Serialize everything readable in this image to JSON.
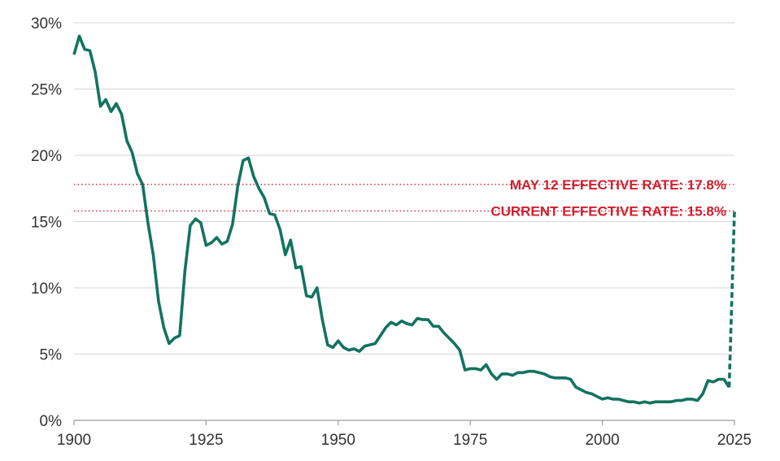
{
  "chart_data": {
    "type": "line",
    "title": "",
    "xlabel": "",
    "ylabel": "",
    "xlim": [
      1900,
      2025
    ],
    "ylim": [
      0,
      30
    ],
    "y_unit": "%",
    "grid": "horizontal",
    "x_ticks": [
      {
        "value": 1900,
        "label": "1900"
      },
      {
        "value": 1925,
        "label": "1925"
      },
      {
        "value": 1950,
        "label": "1950"
      },
      {
        "value": 1975,
        "label": "1975"
      },
      {
        "value": 2000,
        "label": "2000"
      },
      {
        "value": 2025,
        "label": "2025"
      }
    ],
    "y_ticks": [
      {
        "value": 0,
        "label": "0%"
      },
      {
        "value": 5,
        "label": "5%"
      },
      {
        "value": 10,
        "label": "10%"
      },
      {
        "value": 15,
        "label": "15%"
      },
      {
        "value": 20,
        "label": "20%"
      },
      {
        "value": 25,
        "label": "25%"
      },
      {
        "value": 30,
        "label": "30%"
      }
    ],
    "series": [
      {
        "color": "#13735f",
        "style": "solid",
        "x": [
          1900,
          1901,
          1902,
          1903,
          1904,
          1905,
          1906,
          1907,
          1908,
          1909,
          1910,
          1911,
          1912,
          1913,
          1914,
          1915,
          1916,
          1917,
          1918,
          1919,
          1920,
          1921,
          1922,
          1923,
          1924,
          1925,
          1926,
          1927,
          1928,
          1929,
          1930,
          1931,
          1932,
          1933,
          1934,
          1935,
          1936,
          1937,
          1938,
          1939,
          1940,
          1941,
          1942,
          1943,
          1944,
          1945,
          1946,
          1947,
          1948,
          1949,
          1950,
          1951,
          1952,
          1953,
          1954,
          1955,
          1956,
          1957,
          1958,
          1959,
          1960,
          1961,
          1962,
          1963,
          1964,
          1965,
          1966,
          1967,
          1968,
          1969,
          1970,
          1971,
          1972,
          1973,
          1974,
          1975,
          1976,
          1977,
          1978,
          1979,
          1980,
          1981,
          1982,
          1983,
          1984,
          1985,
          1986,
          1987,
          1988,
          1989,
          1990,
          1991,
          1992,
          1993,
          1994,
          1995,
          1996,
          1997,
          1998,
          1999,
          2000,
          2001,
          2002,
          2003,
          2004,
          2005,
          2006,
          2007,
          2008,
          2009,
          2010,
          2011,
          2012,
          2013,
          2014,
          2015,
          2016,
          2017,
          2018,
          2019,
          2020,
          2021,
          2022,
          2023,
          2024
        ],
        "values": [
          27.6,
          29.0,
          28.0,
          27.9,
          26.3,
          23.7,
          24.2,
          23.3,
          23.9,
          23.1,
          21.1,
          20.2,
          18.6,
          17.8,
          14.9,
          12.5,
          9.0,
          7.0,
          5.8,
          6.2,
          6.4,
          11.3,
          14.7,
          15.2,
          14.9,
          13.2,
          13.4,
          13.8,
          13.3,
          13.5,
          14.8,
          17.7,
          19.6,
          19.8,
          18.4,
          17.5,
          16.8,
          15.6,
          15.5,
          14.4,
          12.5,
          13.6,
          11.5,
          11.6,
          9.4,
          9.3,
          10.0,
          7.6,
          5.7,
          5.5,
          6.0,
          5.5,
          5.3,
          5.4,
          5.2,
          5.6,
          5.7,
          5.8,
          6.4,
          7.0,
          7.4,
          7.2,
          7.5,
          7.3,
          7.2,
          7.7,
          7.6,
          7.6,
          7.1,
          7.1,
          6.6,
          6.2,
          5.8,
          5.3,
          3.8,
          3.9,
          3.9,
          3.8,
          4.2,
          3.5,
          3.1,
          3.5,
          3.5,
          3.4,
          3.6,
          3.6,
          3.7,
          3.7,
          3.6,
          3.5,
          3.3,
          3.2,
          3.2,
          3.2,
          3.1,
          2.5,
          2.3,
          2.1,
          2.0,
          1.8,
          1.6,
          1.7,
          1.6,
          1.6,
          1.5,
          1.4,
          1.4,
          1.3,
          1.4,
          1.3,
          1.4,
          1.4,
          1.4,
          1.4,
          1.5,
          1.5,
          1.6,
          1.6,
          1.5,
          2.0,
          3.0,
          2.9,
          3.1,
          3.1,
          2.5
        ]
      },
      {
        "color": "#13735f",
        "style": "dashed",
        "x": [
          2024,
          2025
        ],
        "values": [
          2.5,
          15.8
        ]
      }
    ],
    "reference_lines": [
      {
        "value": 17.8,
        "label": "MAY 12 EFFECTIVE RATE: 17.8%",
        "color": "#d01f2e",
        "style": "dotted"
      },
      {
        "value": 15.8,
        "label": "CURRENT EFFECTIVE RATE: 15.8%",
        "color": "#d01f2e",
        "style": "dotted"
      }
    ]
  }
}
